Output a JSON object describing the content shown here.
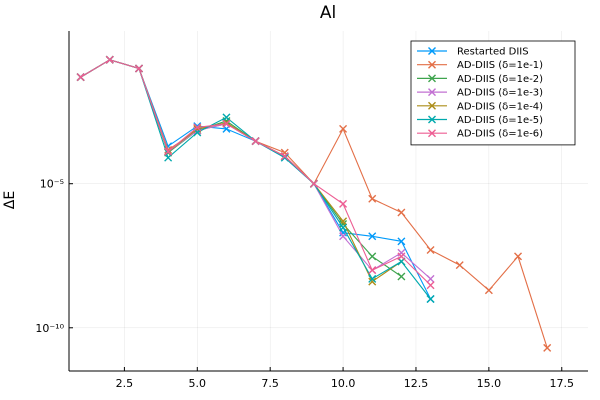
{
  "chart_data": {
    "type": "line",
    "title": "Al",
    "xlabel": "",
    "ylabel": "ΔE",
    "xlim": [
      0.6,
      18.4
    ],
    "xticks": [
      2.5,
      5.0,
      7.5,
      10.0,
      12.5,
      15.0,
      17.5
    ],
    "xtick_labels": [
      "2.5",
      "5.0",
      "7.5",
      "10.0",
      "12.5",
      "15.0",
      "17.5"
    ],
    "ylim_log10": [
      -11.5,
      0.3
    ],
    "yscale": "log",
    "yticks_log10": [
      -5,
      -10
    ],
    "ytick_labels": [
      "10⁻⁵",
      "10⁻¹⁰"
    ],
    "grid": true,
    "legend_position": "top-right",
    "marker": "x",
    "series": [
      {
        "name": "Restarted DIIS",
        "color": "#009AFA",
        "x": [
          1,
          2,
          3,
          4,
          5,
          6,
          7,
          8,
          9,
          10,
          11,
          12,
          13
        ],
        "y": [
          0.05,
          0.2,
          0.1,
          0.0002,
          0.001,
          0.0008,
          0.0003,
          8e-05,
          1e-05,
          2e-07,
          1.5e-07,
          1e-07,
          1e-09
        ]
      },
      {
        "name": "AD-DIIS (δ=1e-1)",
        "color": "#E36F47",
        "x": [
          1,
          2,
          3,
          4,
          5,
          6,
          7,
          8,
          9,
          10,
          11,
          12,
          13,
          14,
          15,
          16,
          17
        ],
        "y": [
          0.05,
          0.2,
          0.1,
          0.00015,
          0.0007,
          0.0012,
          0.0003,
          0.00012,
          1e-05,
          0.0008,
          3e-06,
          1e-06,
          5e-08,
          1.5e-08,
          2e-09,
          3e-08,
          2e-11
        ]
      },
      {
        "name": "AD-DIIS (δ=1e-2)",
        "color": "#3EA44E",
        "x": [
          1,
          2,
          3,
          4,
          5,
          6,
          7,
          8,
          9,
          10,
          11,
          12
        ],
        "y": [
          0.05,
          0.2,
          0.1,
          0.00012,
          0.0007,
          0.0015,
          0.0003,
          9e-05,
          1e-05,
          4e-07,
          3e-08,
          6e-09
        ]
      },
      {
        "name": "AD-DIIS (δ=1e-3)",
        "color": "#C270D2",
        "x": [
          1,
          2,
          3,
          4,
          5,
          6,
          7,
          8,
          9,
          10,
          11,
          12,
          13
        ],
        "y": [
          0.05,
          0.2,
          0.1,
          0.00013,
          0.0007,
          0.0012,
          0.0003,
          9e-05,
          1e-05,
          1.5e-07,
          1e-08,
          4e-08,
          5e-09
        ]
      },
      {
        "name": "AD-DIIS (δ=1e-4)",
        "color": "#AC8D18",
        "x": [
          1,
          2,
          3,
          4,
          5,
          6,
          7,
          8,
          9,
          10,
          11,
          12
        ],
        "y": [
          0.05,
          0.2,
          0.1,
          0.00013,
          0.0008,
          0.0013,
          0.0003,
          9e-05,
          1e-05,
          5e-07,
          4e-09,
          2e-08
        ]
      },
      {
        "name": "AD-DIIS (δ=1e-5)",
        "color": "#00A9AD",
        "x": [
          1,
          2,
          3,
          4,
          5,
          6,
          7,
          8,
          9,
          10,
          11,
          12,
          13
        ],
        "y": [
          0.05,
          0.2,
          0.1,
          8e-05,
          0.0006,
          0.002,
          0.0003,
          8e-05,
          1e-05,
          3e-07,
          5e-09,
          2e-08,
          1e-09
        ]
      },
      {
        "name": "AD-DIIS (δ=1e-6)",
        "color": "#ED5E93",
        "x": [
          1,
          2,
          3,
          4,
          5,
          6,
          7,
          8,
          9,
          10,
          11,
          12,
          13
        ],
        "y": [
          0.05,
          0.2,
          0.1,
          0.00013,
          0.0009,
          0.0012,
          0.0003,
          9e-05,
          1e-05,
          2e-06,
          1e-08,
          3e-08,
          3e-09
        ]
      }
    ]
  }
}
